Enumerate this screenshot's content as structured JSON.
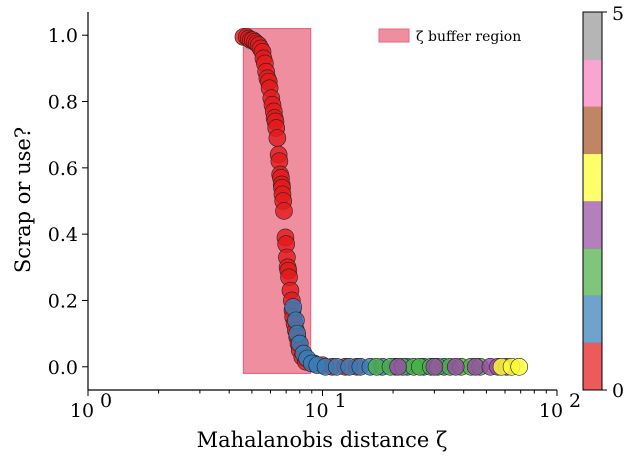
{
  "chart_data": {
    "type": "scatter",
    "title": "",
    "xlabel": "Mahalanobis distance ζ",
    "ylabel": "Scrap or use?",
    "xscale": "log",
    "xlim": [
      1,
      100
    ],
    "ylim": [
      -0.07,
      1.07
    ],
    "x_ticks": [
      {
        "value": 1,
        "label": "10",
        "sup": "0"
      },
      {
        "value": 10,
        "label": "10",
        "sup": "1"
      },
      {
        "value": 100,
        "label": "10",
        "sup": "2"
      }
    ],
    "y_ticks": [
      {
        "value": 0.0,
        "label": "0.0"
      },
      {
        "value": 0.2,
        "label": "0.2"
      },
      {
        "value": 0.4,
        "label": "0.4"
      },
      {
        "value": 0.6,
        "label": "0.6"
      },
      {
        "value": 0.8,
        "label": "0.8"
      },
      {
        "value": 1.0,
        "label": "1.0"
      }
    ],
    "grid": false,
    "buffer_region": {
      "x_start": 4.6,
      "x_end": 8.9,
      "y_start": -0.02,
      "y_end": 1.02,
      "color": "#e8687f"
    },
    "legend": {
      "position": "top-right",
      "entries": [
        {
          "label": "ζ buffer region",
          "color": "#e8687f"
        }
      ]
    },
    "colorbar": {
      "min": 0,
      "max": 5,
      "min_label": "0",
      "max_label": "5",
      "colors": [
        "#e41a1c",
        "#377eb8",
        "#4daf4a",
        "#984ea3",
        "#ffff33",
        "#a65628",
        "#f781bf",
        "#999999"
      ]
    },
    "series": [
      {
        "class": 0,
        "color": "#e41a1c",
        "points": [
          [
            4.6,
            0.995
          ],
          [
            4.75,
            0.995
          ],
          [
            4.85,
            0.99
          ],
          [
            4.95,
            0.985
          ],
          [
            5.05,
            0.985
          ],
          [
            5.15,
            0.98
          ],
          [
            5.25,
            0.975
          ],
          [
            5.35,
            0.97
          ],
          [
            5.45,
            0.96
          ],
          [
            5.55,
            0.95
          ],
          [
            5.6,
            0.93
          ],
          [
            5.68,
            0.915
          ],
          [
            5.75,
            0.89
          ],
          [
            5.82,
            0.87
          ],
          [
            5.9,
            0.86
          ],
          [
            5.95,
            0.84
          ],
          [
            6.05,
            0.81
          ],
          [
            6.12,
            0.79
          ],
          [
            6.2,
            0.77
          ],
          [
            6.25,
            0.75
          ],
          [
            6.3,
            0.74
          ],
          [
            6.35,
            0.72
          ],
          [
            6.42,
            0.69
          ],
          [
            6.5,
            0.64
          ],
          [
            6.55,
            0.62
          ],
          [
            6.6,
            0.58
          ],
          [
            6.65,
            0.57
          ],
          [
            6.7,
            0.55
          ],
          [
            6.72,
            0.54
          ],
          [
            6.75,
            0.52
          ],
          [
            6.8,
            0.5
          ],
          [
            6.85,
            0.47
          ],
          [
            6.95,
            0.39
          ],
          [
            7.0,
            0.37
          ],
          [
            7.05,
            0.33
          ],
          [
            7.1,
            0.3
          ],
          [
            7.15,
            0.29
          ],
          [
            7.2,
            0.27
          ],
          [
            7.3,
            0.23
          ],
          [
            7.4,
            0.2
          ],
          [
            7.45,
            0.17
          ],
          [
            7.5,
            0.15
          ],
          [
            7.6,
            0.13
          ],
          [
            7.7,
            0.11
          ],
          [
            7.8,
            0.09
          ],
          [
            7.9,
            0.07
          ],
          [
            8.0,
            0.05
          ],
          [
            8.2,
            0.03
          ],
          [
            8.5,
            0.015
          ],
          [
            9.2,
            0.01
          ],
          [
            10.0,
            0.005
          ],
          [
            11.0,
            0.0
          ],
          [
            12.5,
            0.0
          ],
          [
            14.0,
            0.0
          ]
        ]
      },
      {
        "class": 1,
        "color": "#377eb8",
        "points": [
          [
            7.5,
            0.18
          ],
          [
            7.7,
            0.14
          ],
          [
            7.8,
            0.1
          ],
          [
            8.0,
            0.07
          ],
          [
            8.3,
            0.04
          ],
          [
            8.6,
            0.025
          ],
          [
            9.0,
            0.01
          ],
          [
            9.5,
            0.005
          ],
          [
            10.3,
            0.0
          ],
          [
            11.5,
            0.0
          ],
          [
            13.0,
            0.0
          ],
          [
            14.5,
            0.0
          ],
          [
            16.0,
            0.0
          ],
          [
            18.0,
            0.0
          ],
          [
            20.5,
            0.0
          ],
          [
            23.0,
            0.0
          ],
          [
            27.0,
            0.0
          ],
          [
            33.0,
            0.0
          ]
        ]
      },
      {
        "class": 2,
        "color": "#4daf4a",
        "points": [
          [
            17.0,
            0.0
          ],
          [
            19.5,
            0.0
          ],
          [
            22.0,
            0.0
          ],
          [
            24.5,
            0.0
          ],
          [
            26.0,
            0.0
          ],
          [
            29.0,
            0.0
          ],
          [
            31.0,
            0.0
          ],
          [
            35.0,
            0.0
          ],
          [
            39.0,
            0.0
          ],
          [
            43.0,
            0.0
          ],
          [
            47.0,
            0.0
          ]
        ]
      },
      {
        "class": 3,
        "color": "#984ea3",
        "points": [
          [
            21.0,
            0.0
          ],
          [
            30.0,
            0.0
          ],
          [
            37.0,
            0.0
          ],
          [
            45.0,
            0.0
          ],
          [
            52.0,
            0.0
          ],
          [
            56.0,
            0.0
          ],
          [
            61.0,
            0.0
          ]
        ]
      },
      {
        "class": 4,
        "color": "#ffff33",
        "points": [
          [
            58.0,
            0.0
          ],
          [
            64.0,
            0.0
          ],
          [
            69.0,
            0.0
          ]
        ]
      }
    ]
  }
}
